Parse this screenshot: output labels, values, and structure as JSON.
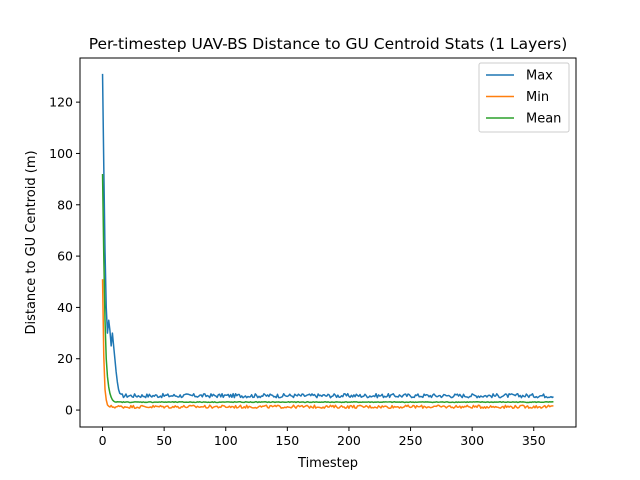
{
  "chart_data": {
    "type": "line",
    "title": "Per-timestep UAV-BS Distance to GU Centroid Stats (1 Layers)",
    "xlabel": "Timestep",
    "ylabel": "Distance to GU Centroid (m)",
    "xlim": [
      -18.3,
      384.3
    ],
    "ylim": [
      -6.6,
      137.2
    ],
    "xticks": [
      0,
      50,
      100,
      150,
      200,
      250,
      300,
      350
    ],
    "yticks": [
      0,
      20,
      40,
      60,
      80,
      100,
      120
    ],
    "grid": false,
    "legend_position": "top-right",
    "x_end": 366,
    "series": [
      {
        "name": "Max",
        "color": "#1f77b4",
        "initial": [
          131,
          95,
          62,
          40,
          30,
          35,
          31,
          25,
          30,
          25,
          20,
          15,
          11,
          8,
          6.5
        ],
        "base": 5.6,
        "jitter": 0.8
      },
      {
        "name": "Min",
        "color": "#ff7f0e",
        "initial": [
          51,
          21,
          8,
          4,
          2,
          1.5,
          1.2
        ],
        "base": 1.3,
        "jitter": 0.6
      },
      {
        "name": "Mean",
        "color": "#2ca02c",
        "initial": [
          92,
          60,
          35,
          20,
          13,
          9,
          6.5,
          5,
          4,
          3.5,
          3.2,
          3.1
        ],
        "base": 3.1,
        "jitter": 0.15
      }
    ]
  }
}
